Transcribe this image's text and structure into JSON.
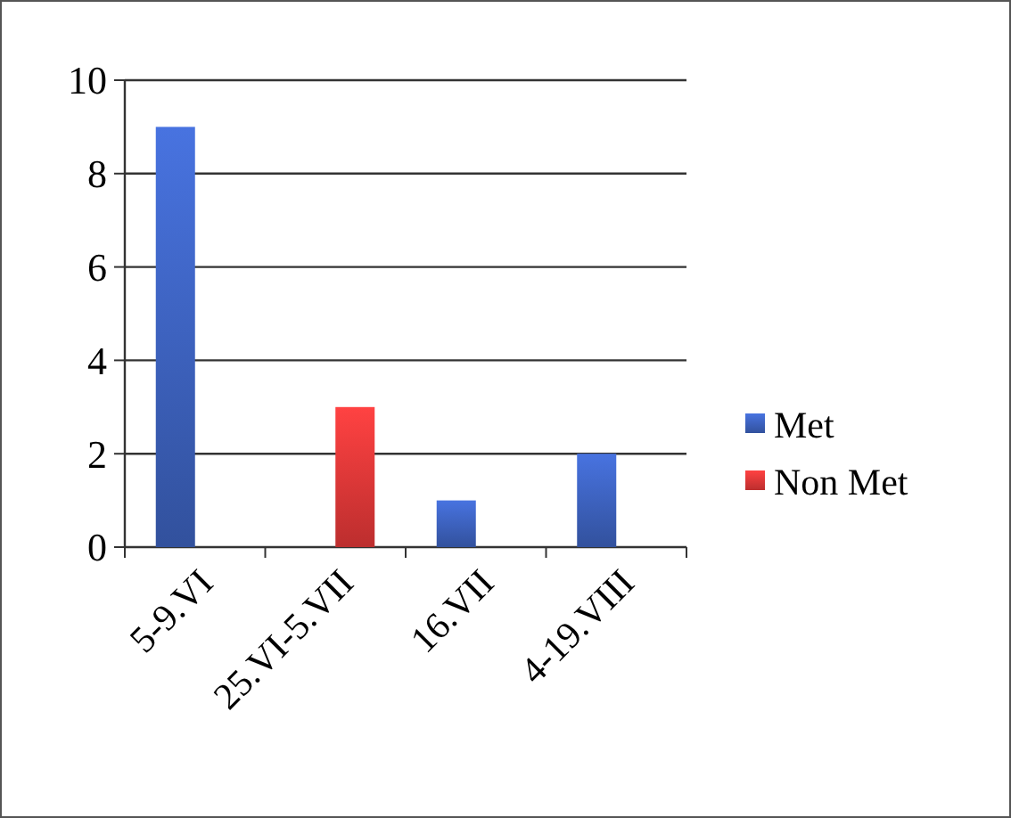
{
  "chart_data": {
    "type": "bar",
    "categories": [
      "5-9.VI",
      "25.VI-5.VII",
      "16.VII",
      "4-19.VIII"
    ],
    "series": [
      {
        "name": "Met",
        "color": "#3a5db5",
        "values": [
          9,
          0,
          1,
          2
        ]
      },
      {
        "name": "Non Met",
        "color": "#d93535",
        "values": [
          0,
          3,
          0,
          0
        ]
      }
    ],
    "ylim": [
      0,
      10
    ],
    "yticks": [
      0,
      2,
      4,
      6,
      8,
      10
    ],
    "grid": "y",
    "legend": "right"
  }
}
